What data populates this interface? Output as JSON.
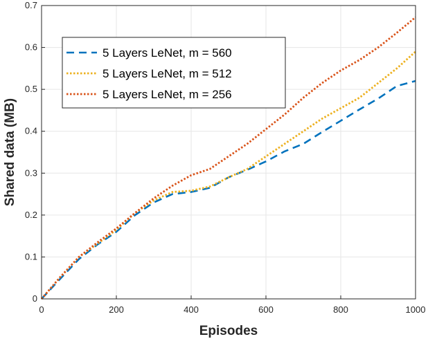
{
  "chart_data": {
    "type": "line",
    "xlabel": "Episodes",
    "ylabel": "Shared data (MB)",
    "xlim": [
      0,
      1000
    ],
    "ylim": [
      0,
      0.7
    ],
    "xticks": [
      "0",
      "200",
      "400",
      "600",
      "800",
      "1000"
    ],
    "yticks": [
      "0",
      "0.1",
      "0.2",
      "0.3",
      "0.4",
      "0.5",
      "0.6",
      "0.7"
    ],
    "grid": true,
    "legend_position": "top-left",
    "series": [
      {
        "name": "5 Layers LeNet, m = 560",
        "color": "#0072BD",
        "style": "dashed",
        "x": [
          0,
          50,
          100,
          150,
          200,
          250,
          300,
          350,
          400,
          450,
          500,
          550,
          600,
          650,
          700,
          750,
          800,
          850,
          900,
          950,
          1000
        ],
        "y": [
          0,
          0.048,
          0.095,
          0.13,
          0.16,
          0.2,
          0.23,
          0.25,
          0.255,
          0.265,
          0.29,
          0.308,
          0.328,
          0.352,
          0.37,
          0.398,
          0.425,
          0.452,
          0.478,
          0.508,
          0.52
        ]
      },
      {
        "name": "5 Layers LeNet, m = 512",
        "color": "#EDB120",
        "style": "dotted",
        "x": [
          0,
          50,
          100,
          150,
          200,
          250,
          300,
          350,
          400,
          450,
          500,
          550,
          600,
          650,
          700,
          750,
          800,
          850,
          900,
          950,
          1000
        ],
        "y": [
          0,
          0.052,
          0.1,
          0.132,
          0.165,
          0.205,
          0.235,
          0.255,
          0.258,
          0.268,
          0.29,
          0.31,
          0.34,
          0.37,
          0.4,
          0.43,
          0.455,
          0.48,
          0.515,
          0.55,
          0.59
        ]
      },
      {
        "name": "5 Layers LeNet, m = 256",
        "color": "#D95319",
        "style": "dotted",
        "x": [
          0,
          50,
          100,
          150,
          200,
          250,
          300,
          350,
          400,
          450,
          500,
          550,
          600,
          650,
          700,
          750,
          800,
          850,
          900,
          950,
          1000
        ],
        "y": [
          0,
          0.052,
          0.1,
          0.135,
          0.168,
          0.205,
          0.24,
          0.27,
          0.295,
          0.31,
          0.34,
          0.37,
          0.405,
          0.44,
          0.48,
          0.515,
          0.545,
          0.57,
          0.6,
          0.635,
          0.672
        ]
      }
    ]
  }
}
